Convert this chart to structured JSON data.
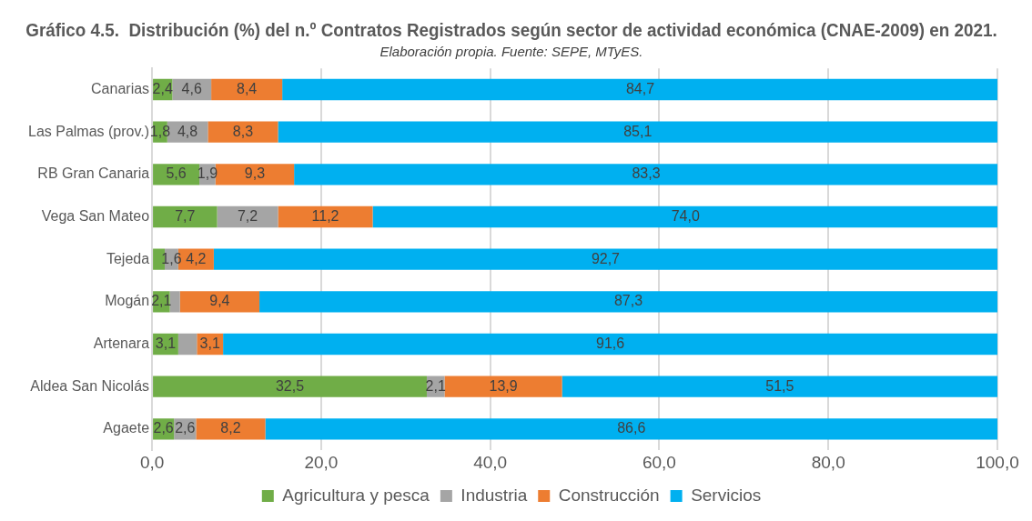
{
  "chart_data": {
    "type": "bar",
    "orientation": "horizontal",
    "stacked": true,
    "title": "Gráfico 4.5.  Distribución (%) del n.º Contratos Registrados según sector de actividad económica (CNAE-2009) en 2021.",
    "subtitle": "Elaboración propia. Fuente: SEPE, MTyES.",
    "categories": [
      "Canarias",
      "Las Palmas (prov.)",
      "RB Gran Canaria",
      "Vega San Mateo",
      "Tejeda",
      "Mogán",
      "Artenara",
      "Aldea San Nicolás",
      "Agaete"
    ],
    "series": [
      {
        "name": "Agricultura y pesca",
        "color": "#70ad47",
        "values": [
          2.4,
          1.8,
          5.6,
          7.7,
          1.5,
          2.1,
          3.1,
          32.5,
          2.6
        ],
        "value_labels": [
          "2,4",
          "1,8",
          "5,6",
          "7,7",
          null,
          "2,1",
          "3,1",
          "32,5",
          "2,6"
        ]
      },
      {
        "name": "Industria",
        "color": "#a5a5a5",
        "values": [
          4.6,
          4.8,
          1.9,
          7.2,
          1.6,
          1.2,
          2.2,
          2.1,
          2.6
        ],
        "value_labels": [
          "4,6",
          "4,8",
          "1,9",
          "7,2",
          "1,6",
          null,
          null,
          "2,1",
          "2,6"
        ]
      },
      {
        "name": "Construcción",
        "color": "#ed7d31",
        "values": [
          8.4,
          8.3,
          9.3,
          11.2,
          4.2,
          9.4,
          3.1,
          13.9,
          8.2
        ],
        "value_labels": [
          "8,4",
          "8,3",
          "9,3",
          "11,2",
          "4,2",
          "9,4",
          "3,1",
          "13,9",
          "8,2"
        ]
      },
      {
        "name": "Servicios",
        "color": "#00b0f0",
        "values": [
          84.7,
          85.1,
          83.3,
          74.0,
          92.7,
          87.3,
          91.6,
          51.5,
          86.6
        ],
        "value_labels": [
          "84,7",
          "85,1",
          "83,3",
          "74,0",
          "92,7",
          "87,3",
          "91,6",
          "51,5",
          "86,6"
        ]
      }
    ],
    "xlim": [
      0,
      100
    ],
    "xticks": [
      {
        "value": 0,
        "label": "0,0"
      },
      {
        "value": 20,
        "label": "20,0"
      },
      {
        "value": 40,
        "label": "40,0"
      },
      {
        "value": 60,
        "label": "60,0"
      },
      {
        "value": 80,
        "label": "80,0"
      },
      {
        "value": 100,
        "label": "100,0"
      }
    ],
    "grid": "x",
    "legend": "bottom"
  }
}
